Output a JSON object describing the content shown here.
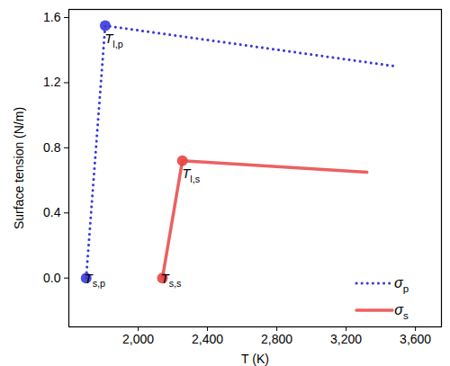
{
  "chart_data": {
    "type": "line",
    "x_label": "T (K)",
    "y_label": "Surface tension (N/m)",
    "xlim": [
      1600,
      3750
    ],
    "xticks": [
      {
        "value": 2000,
        "label": "2,000"
      },
      {
        "value": 2400,
        "label": "2,400"
      },
      {
        "value": 2800,
        "label": "2,800"
      },
      {
        "value": 3200,
        "label": "3,200"
      },
      {
        "value": 3600,
        "label": "3,600"
      }
    ],
    "ylim": [
      -0.3,
      1.65
    ],
    "yticks": [
      {
        "value": 0,
        "label": "0.0"
      },
      {
        "value": 0.4,
        "label": "0.4"
      },
      {
        "value": 0.8,
        "label": "0.8"
      },
      {
        "value": 1.2,
        "label": "1.2"
      },
      {
        "value": 1.6,
        "label": "1.6"
      }
    ],
    "grid": false,
    "legend": "bottom-right",
    "series": [
      {
        "name": "σp",
        "color": "#3a3ad8",
        "line_style": "dotted",
        "marker": "circle",
        "x": [
          1700,
          1810,
          3490
        ],
        "values": [
          0,
          1.55,
          1.3
        ]
      },
      {
        "name": "σs",
        "color": "#e84545",
        "line_style": "solid",
        "marker": "circle",
        "x": [
          2140,
          2255,
          3320
        ],
        "values": [
          0,
          0.72,
          0.65
        ]
      }
    ],
    "annotations": [
      {
        "text": "Tl,p",
        "series": "σp",
        "x": 1810,
        "y": 1.55
      },
      {
        "text": "Ts,p",
        "series": "σp",
        "x": 1700,
        "y": 0
      },
      {
        "text": "Tl,s",
        "series": "σs",
        "x": 2255,
        "y": 0.72
      },
      {
        "text": "Ts,s",
        "series": "σs",
        "x": 2140,
        "y": 0
      }
    ]
  }
}
